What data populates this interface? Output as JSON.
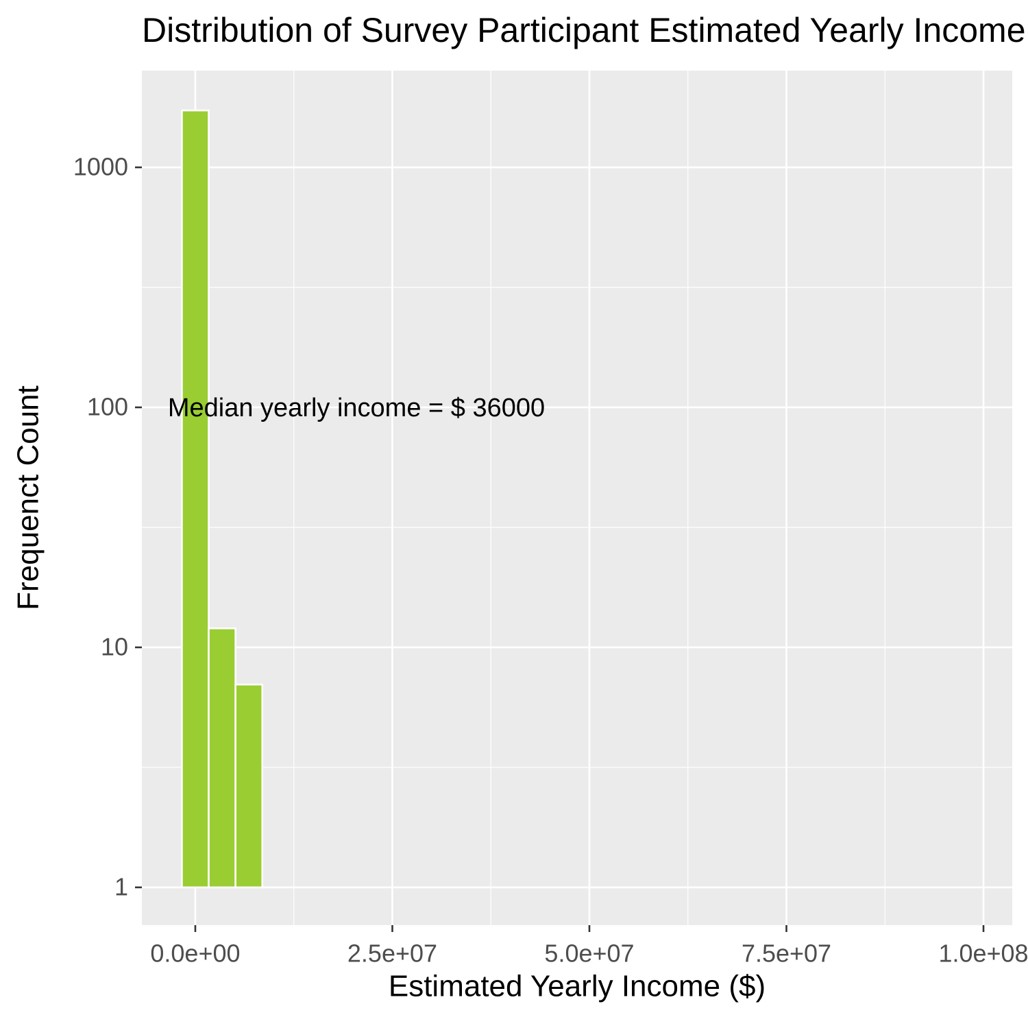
{
  "chart_data": {
    "type": "histogram",
    "title": "Distribution of Survey Participant Estimated Yearly Income",
    "x_label": "Estimated Yearly Income ($)",
    "y_label": "Frequenct Count",
    "annotation": "Median yearly income = $ 36000",
    "bins": [
      -1700000,
      1700000,
      5100000,
      8500000
    ],
    "counts": [
      1726,
      12,
      7
    ],
    "color": "#9acd32",
    "edge_color": "#ffffff",
    "xlim": [
      -6780000,
      103650000
    ],
    "xticks": [
      {
        "value": 0,
        "label": "0.0e+00"
      },
      {
        "value": 25000000,
        "label": "2.5e+07"
      },
      {
        "value": 50000000,
        "label": "5.0e+07"
      },
      {
        "value": 75000000,
        "label": "7.5e+07"
      },
      {
        "value": 100000000,
        "label": "1.0e+08"
      }
    ],
    "ylim": [
      0.696,
      2529
    ],
    "yticks": [
      1,
      10,
      100,
      1000
    ],
    "y_log": true,
    "grid": true,
    "minor_grid": true
  }
}
